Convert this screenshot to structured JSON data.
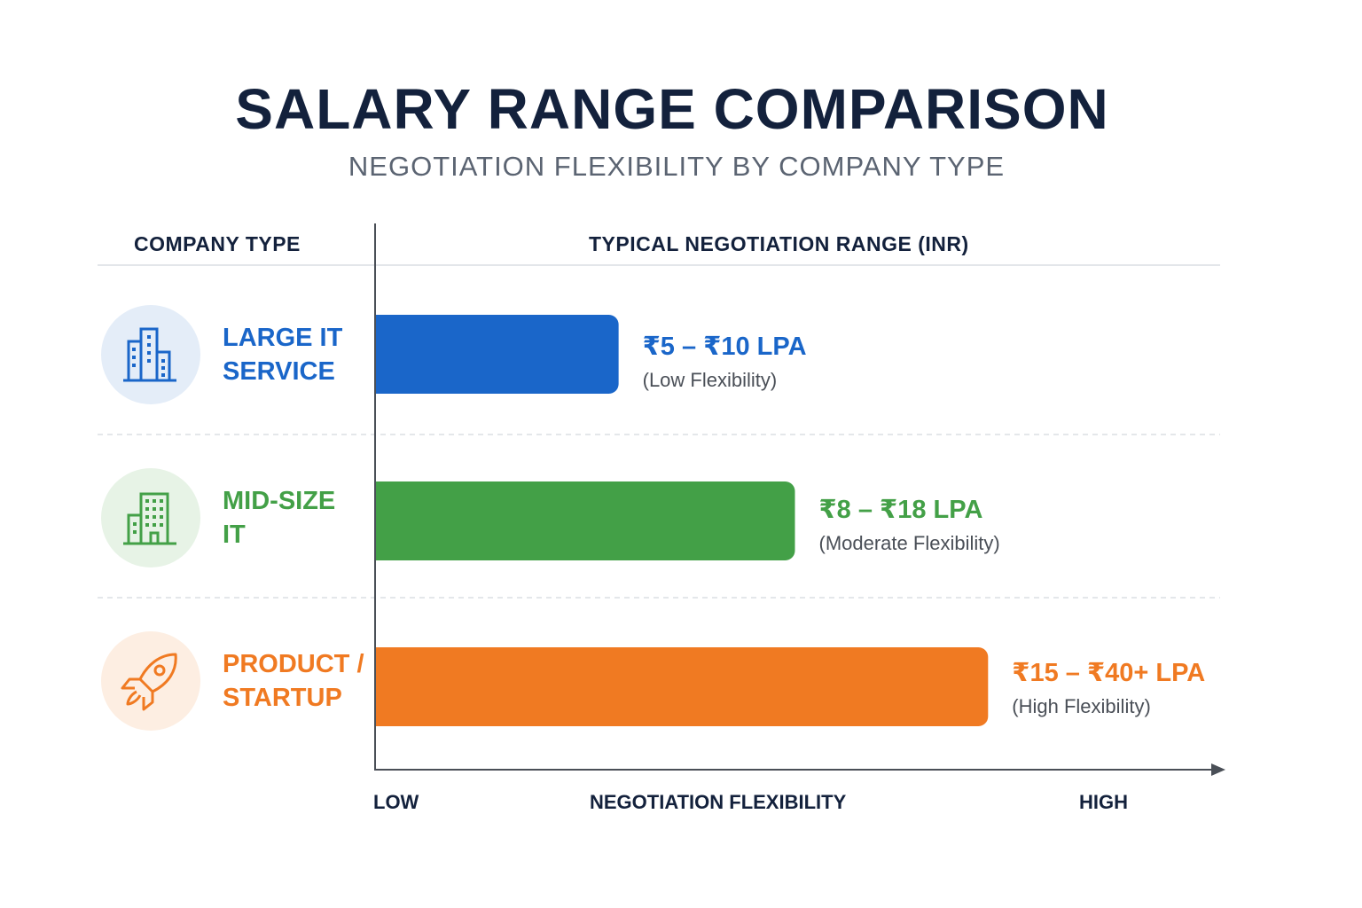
{
  "chart_data": {
    "type": "bar",
    "orientation": "horizontal",
    "title": "SALARY RANGE COMPARISON",
    "subtitle": "NEGOTIATION FLEXIBILITY BY COMPANY TYPE",
    "column_headers": {
      "left": "COMPANY TYPE",
      "right": "TYPICAL NEGOTIATION RANGE (INR)"
    },
    "xlabel": "NEGOTIATION FLEXIBILITY",
    "x_low_label": "LOW",
    "x_high_label": "HIGH",
    "xlim": [
      0,
      1
    ],
    "grid": false,
    "categories": [
      {
        "line1": "LARGE IT",
        "line2": "SERVICE",
        "icon": "office-buildings-icon",
        "range": "₹5 – ₹10 LPA",
        "flexibility": "(Low Flexibility)",
        "value": 0.29,
        "color": "#1a66c9",
        "tint": "#e4edf8"
      },
      {
        "line1": "MID-SIZE",
        "line2": "IT",
        "icon": "office-building-icon",
        "range": "₹8 – ₹18 LPA",
        "flexibility": "(Moderate Flexibility)",
        "value": 0.5,
        "color": "#43a047",
        "tint": "#e7f3e6"
      },
      {
        "line1": "PRODUCT /",
        "line2": "STARTUP",
        "icon": "rocket-icon",
        "range": "₹15 – ₹40+ LPA",
        "flexibility": "(High Flexibility)",
        "value": 0.73,
        "color": "#f07a22",
        "tint": "#fdeee2"
      }
    ]
  }
}
